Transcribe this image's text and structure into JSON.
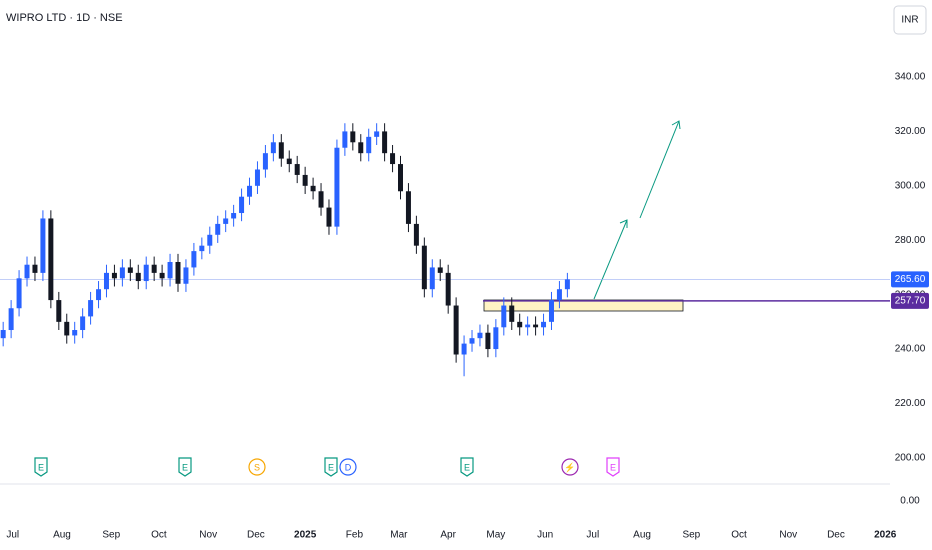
{
  "chart_data": {
    "type": "candlestick",
    "title": "WIPRO LTD · 1D · NSE",
    "currency": "INR",
    "x": [
      -6,
      -1,
      4,
      9,
      14,
      19,
      24,
      29,
      34,
      39,
      44,
      49,
      54,
      59,
      64,
      69,
      74,
      79,
      84,
      89,
      94,
      99,
      104,
      109,
      114,
      119,
      124,
      129,
      134,
      139,
      144,
      149,
      154,
      159,
      164,
      169,
      174,
      179,
      184,
      189,
      194,
      199,
      204,
      209,
      214,
      219,
      224,
      229,
      234,
      239,
      244,
      249,
      254,
      259,
      264,
      269,
      274,
      279,
      284,
      289,
      294,
      299,
      304,
      309,
      314,
      319,
      324,
      329,
      334,
      339,
      344,
      349
    ],
    "open": [
      244,
      247,
      255,
      266,
      271,
      268,
      288,
      258,
      250,
      245,
      247,
      252,
      258,
      262,
      268,
      266,
      270,
      268,
      265,
      271,
      268,
      266,
      272,
      264,
      270,
      276,
      278,
      282,
      286,
      288,
      290,
      296,
      300,
      306,
      312,
      316,
      310,
      308,
      304,
      300,
      298,
      292,
      285,
      314,
      320,
      316,
      312,
      318,
      320,
      312,
      308,
      298,
      286,
      278,
      262,
      270,
      268,
      256,
      238,
      242,
      244,
      246,
      240,
      248,
      256,
      250,
      248,
      249,
      248,
      250,
      258,
      262
    ],
    "high": [
      250,
      258,
      269,
      274,
      274,
      291,
      291,
      261,
      253,
      250,
      255,
      261,
      265,
      271,
      271,
      273,
      273,
      271,
      274,
      274,
      271,
      275,
      275,
      273,
      279,
      281,
      285,
      289,
      291,
      293,
      299,
      303,
      309,
      315,
      319,
      319,
      313,
      311,
      307,
      303,
      301,
      295,
      317,
      323,
      323,
      319,
      321,
      323,
      323,
      315,
      311,
      301,
      289,
      281,
      273,
      273,
      271,
      259,
      245,
      247,
      249,
      249,
      251,
      259,
      259,
      253,
      252,
      252,
      253,
      261,
      265,
      268
    ],
    "low": [
      241,
      244,
      252,
      263,
      265,
      265,
      255,
      247,
      242,
      242,
      244,
      249,
      255,
      259,
      263,
      263,
      265,
      262,
      262,
      265,
      263,
      263,
      261,
      261,
      267,
      273,
      275,
      279,
      283,
      285,
      287,
      293,
      297,
      303,
      309,
      307,
      305,
      301,
      297,
      295,
      289,
      282,
      282,
      311,
      313,
      309,
      309,
      315,
      309,
      305,
      295,
      283,
      275,
      259,
      259,
      265,
      253,
      235,
      230,
      239,
      241,
      237,
      237,
      245,
      247,
      245,
      245,
      245,
      245,
      247,
      255,
      259
    ],
    "close": [
      247,
      255,
      266,
      271,
      268,
      288,
      258,
      250,
      245,
      247,
      252,
      258,
      262,
      268,
      266,
      270,
      268,
      265,
      271,
      268,
      266,
      272,
      264,
      270,
      276,
      278,
      282,
      286,
      288,
      290,
      296,
      300,
      306,
      312,
      316,
      310,
      308,
      304,
      300,
      298,
      292,
      285,
      314,
      320,
      316,
      312,
      318,
      320,
      312,
      308,
      298,
      286,
      278,
      262,
      270,
      268,
      256,
      238,
      242,
      244,
      246,
      240,
      248,
      256,
      250,
      248,
      249,
      248,
      250,
      258,
      262,
      265.6
    ],
    "up_color": "#2962ff",
    "down_color": "#131722",
    "xlim": [
      -8,
      552
    ],
    "xticks": [
      {
        "value": 0,
        "label": "Jul"
      },
      {
        "value": 31,
        "label": "Aug"
      },
      {
        "value": 62,
        "label": "Sep"
      },
      {
        "value": 92,
        "label": "Oct"
      },
      {
        "value": 123,
        "label": "Nov"
      },
      {
        "value": 153,
        "label": "Dec"
      },
      {
        "value": 184,
        "label": "2025"
      },
      {
        "value": 215,
        "label": "Feb"
      },
      {
        "value": 243,
        "label": "Mar"
      },
      {
        "value": 274,
        "label": "Apr"
      },
      {
        "value": 304,
        "label": "May"
      },
      {
        "value": 335,
        "label": "Jun"
      },
      {
        "value": 365,
        "label": "Jul"
      },
      {
        "value": 396,
        "label": "Aug"
      },
      {
        "value": 427,
        "label": "Sep"
      },
      {
        "value": 457,
        "label": "Oct"
      },
      {
        "value": 488,
        "label": "Nov"
      },
      {
        "value": 518,
        "label": "Dec"
      },
      {
        "value": 549,
        "label": "2026"
      }
    ],
    "ylim": [
      190.4,
      368.3
    ],
    "yticks": [
      {
        "value": 200,
        "label": "200.00"
      },
      {
        "value": 220,
        "label": "220.00"
      },
      {
        "value": 240,
        "label": "240.00"
      },
      {
        "value": 260,
        "label": "260.00"
      },
      {
        "value": 280,
        "label": "280.00"
      },
      {
        "value": 300,
        "label": "300.00"
      },
      {
        "value": 320,
        "label": "320.00"
      },
      {
        "value": 340,
        "label": "340.00"
      }
    ],
    "lower_pane_ticks": [
      {
        "value": 0,
        "label": "0.00"
      }
    ],
    "price_labels": [
      {
        "value": 265.6,
        "label": "265.60",
        "color": "#2962ff"
      },
      {
        "value": 257.7,
        "label": "257.70",
        "color": "#5b2c9f"
      }
    ],
    "events": [
      {
        "label": "E",
        "color": "#089981"
      },
      {
        "label": "E",
        "color": "#089981"
      },
      {
        "label": "S",
        "color": "#f7a600"
      },
      {
        "label": "E",
        "color": "#089981"
      },
      {
        "label": "D",
        "color": "#2962ff"
      },
      {
        "label": "E",
        "color": "#089981"
      },
      {
        "label": "⚡",
        "color": "#9c27b0"
      },
      {
        "label": "E",
        "color": "#e040fb"
      }
    ]
  }
}
